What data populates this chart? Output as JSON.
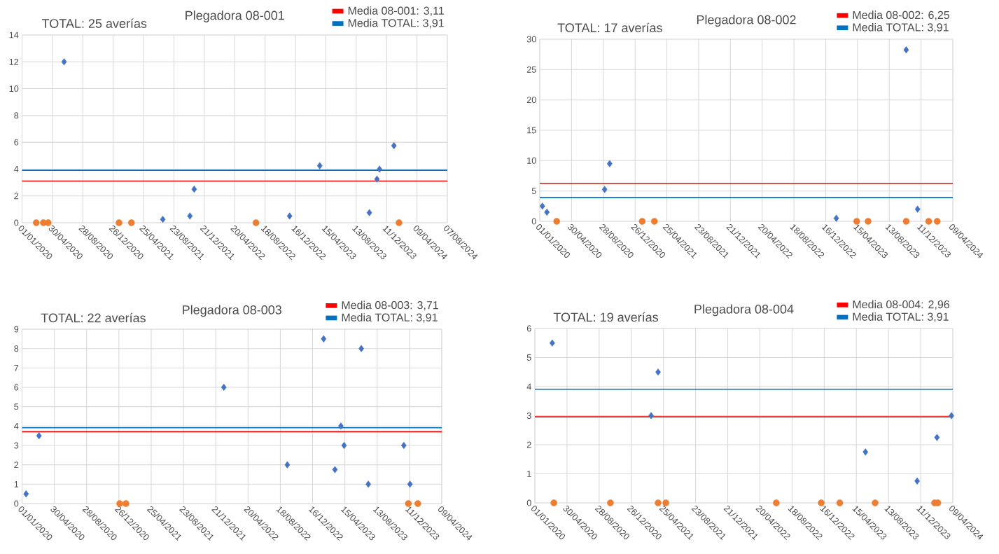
{
  "chart_data": [
    {
      "type": "scatter",
      "title": "Plegadora 08-001",
      "subtitle": "TOTAL: 25 averías",
      "grid": true,
      "legend": "top right",
      "xlim": [
        "2020-01-01",
        "2024-08-07"
      ],
      "xticks": [
        {
          "value": "2020-01-01",
          "label": "01/01/2020"
        },
        {
          "value": "2020-04-30",
          "label": "30/04/2020"
        },
        {
          "value": "2020-08-28",
          "label": "28/08/2020"
        },
        {
          "value": "2020-12-26",
          "label": "26/12/2020"
        },
        {
          "value": "2021-04-25",
          "label": "25/04/2021"
        },
        {
          "value": "2021-08-23",
          "label": "23/08/2021"
        },
        {
          "value": "2021-12-21",
          "label": "21/12/2021"
        },
        {
          "value": "2022-04-20",
          "label": "20/04/2022"
        },
        {
          "value": "2022-08-18",
          "label": "18/08/2022"
        },
        {
          "value": "2022-12-16",
          "label": "16/12/2022"
        },
        {
          "value": "2023-04-15",
          "label": "15/04/2023"
        },
        {
          "value": "2023-08-13",
          "label": "13/08/2023"
        },
        {
          "value": "2023-12-11",
          "label": "11/12/2023"
        },
        {
          "value": "2024-04-09",
          "label": "09/04/2024"
        },
        {
          "value": "2024-08-07",
          "label": "07/08/2024"
        }
      ],
      "ylim": [
        0,
        14
      ],
      "yticks": [
        0,
        2,
        4,
        6,
        8,
        10,
        12,
        14
      ],
      "series": [
        {
          "color": "#4472c4",
          "marker": "diamond",
          "x": [
            "2020-06-15",
            "2021-07-10",
            "2021-10-25",
            "2021-11-11",
            "2022-11-23",
            "2023-03-22",
            "2023-10-04",
            "2023-11-03",
            "2023-11-13",
            "2024-01-09"
          ],
          "values": [
            12,
            0.25,
            0.5,
            2.5,
            0.5,
            4.25,
            0.75,
            3.25,
            4,
            5.75
          ]
        },
        {
          "color": "#ed7d31",
          "marker": "circle",
          "x": [
            "2020-02-26",
            "2020-03-25",
            "2020-04-13",
            "2021-01-18",
            "2021-03-08",
            "2022-07-13",
            "2024-01-29"
          ],
          "values": [
            0,
            0,
            0,
            0,
            0,
            0,
            0
          ]
        }
      ],
      "ref_lines": [
        {
          "axis": "y",
          "value": 3.11,
          "label": "Media 08-001: 3,11",
          "color": "#ff0000"
        },
        {
          "axis": "y",
          "value": 3.91,
          "label": "Media TOTAL: 3,91",
          "color": "#0070c0"
        }
      ]
    },
    {
      "type": "scatter",
      "title": "Plegadora 08-002",
      "subtitle": "TOTAL: 17 averías",
      "grid": true,
      "legend": "top right",
      "xlim": [
        "2020-01-01",
        "2024-04-09"
      ],
      "xticks": [
        {
          "value": "2020-01-01",
          "label": "01/01/2020"
        },
        {
          "value": "2020-04-30",
          "label": "30/04/2020"
        },
        {
          "value": "2020-08-28",
          "label": "28/08/2020"
        },
        {
          "value": "2020-12-26",
          "label": "26/12/2020"
        },
        {
          "value": "2021-04-25",
          "label": "25/04/2021"
        },
        {
          "value": "2021-08-23",
          "label": "23/08/2021"
        },
        {
          "value": "2021-12-21",
          "label": "21/12/2021"
        },
        {
          "value": "2022-04-20",
          "label": "20/04/2022"
        },
        {
          "value": "2022-08-18",
          "label": "18/08/2022"
        },
        {
          "value": "2022-12-16",
          "label": "16/12/2022"
        },
        {
          "value": "2023-04-15",
          "label": "15/04/2023"
        },
        {
          "value": "2023-08-13",
          "label": "13/08/2023"
        },
        {
          "value": "2023-12-11",
          "label": "11/12/2023"
        },
        {
          "value": "2024-04-09",
          "label": "09/04/2024"
        }
      ],
      "ylim": [
        0,
        30
      ],
      "yticks": [
        0,
        5,
        10,
        15,
        20,
        25,
        30
      ],
      "series": [
        {
          "color": "#4472c4",
          "marker": "diamond",
          "x": [
            "2020-01-11",
            "2020-01-28",
            "2020-09-02",
            "2020-09-21",
            "2023-01-25",
            "2023-10-16",
            "2023-11-28"
          ],
          "values": [
            2.5,
            1.5,
            5.25,
            9.5,
            0.5,
            28.25,
            2
          ]
        },
        {
          "color": "#ed7d31",
          "marker": "circle",
          "x": [
            "2020-03-05",
            "2021-01-22",
            "2021-03-09",
            "2023-04-12",
            "2023-05-25",
            "2023-10-16",
            "2024-01-09",
            "2024-02-10"
          ],
          "values": [
            0,
            0,
            0,
            0,
            0,
            0,
            0,
            0
          ]
        }
      ],
      "ref_lines": [
        {
          "axis": "y",
          "value": 6.25,
          "label": "Media 08-002: 6,25",
          "color": "#ff0000"
        },
        {
          "axis": "y",
          "value": 3.91,
          "label": "Media TOTAL: 3,91",
          "color": "#0070c0"
        }
      ]
    },
    {
      "type": "scatter",
      "title": "Plegadora 08-003",
      "subtitle": "TOTAL: 22 averías",
      "grid": true,
      "legend": "top right",
      "xlim": [
        "2020-01-01",
        "2024-04-09"
      ],
      "xticks": [
        {
          "value": "2020-01-01",
          "label": "01/01/2020"
        },
        {
          "value": "2020-04-30",
          "label": "30/04/2020"
        },
        {
          "value": "2020-08-28",
          "label": "28/08/2020"
        },
        {
          "value": "2020-12-26",
          "label": "26/12/2020"
        },
        {
          "value": "2021-04-25",
          "label": "25/04/2021"
        },
        {
          "value": "2021-08-23",
          "label": "23/08/2021"
        },
        {
          "value": "2021-12-21",
          "label": "21/12/2021"
        },
        {
          "value": "2022-04-20",
          "label": "20/04/2022"
        },
        {
          "value": "2022-08-18",
          "label": "18/08/2022"
        },
        {
          "value": "2022-12-16",
          "label": "16/12/2022"
        },
        {
          "value": "2023-04-15",
          "label": "15/04/2023"
        },
        {
          "value": "2023-08-13",
          "label": "13/08/2023"
        },
        {
          "value": "2023-12-11",
          "label": "11/12/2023"
        },
        {
          "value": "2024-04-09",
          "label": "09/04/2024"
        }
      ],
      "ylim": [
        0,
        9
      ],
      "yticks": [
        0,
        1,
        2,
        3,
        4,
        5,
        6,
        7,
        8,
        9
      ],
      "series": [
        {
          "color": "#4472c4",
          "marker": "diamond",
          "x": [
            "2020-01-16",
            "2020-03-04",
            "2022-01-20",
            "2022-09-13",
            "2023-01-26",
            "2023-03-09",
            "2023-03-31",
            "2023-04-12",
            "2023-06-15",
            "2023-07-11",
            "2023-11-20",
            "2023-12-13"
          ],
          "values": [
            0.5,
            3.5,
            6,
            2,
            8.5,
            1.75,
            4,
            3,
            8,
            1,
            3,
            1
          ]
        },
        {
          "color": "#ed7d31",
          "marker": "circle",
          "x": [
            "2020-12-29",
            "2021-01-21",
            "2023-12-07",
            "2024-01-11"
          ],
          "values": [
            0,
            0,
            0,
            0
          ]
        }
      ],
      "ref_lines": [
        {
          "axis": "y",
          "value": 3.71,
          "label": "Media 08-003: 3,71",
          "color": "#ff0000"
        },
        {
          "axis": "y",
          "value": 3.91,
          "label": "Media TOTAL: 3,91",
          "color": "#0070c0"
        }
      ]
    },
    {
      "type": "scatter",
      "title": "Plegadora 08-004",
      "subtitle": "TOTAL: 19 averías",
      "grid": true,
      "legend": "top right",
      "xlim": [
        "2020-01-01",
        "2024-04-09"
      ],
      "xticks": [
        {
          "value": "2020-01-01",
          "label": "01/01/2020"
        },
        {
          "value": "2020-04-30",
          "label": "30/04/2020"
        },
        {
          "value": "2020-08-28",
          "label": "28/08/2020"
        },
        {
          "value": "2020-12-26",
          "label": "26/12/2020"
        },
        {
          "value": "2021-04-25",
          "label": "25/04/2021"
        },
        {
          "value": "2021-08-23",
          "label": "23/08/2021"
        },
        {
          "value": "2021-12-21",
          "label": "21/12/2021"
        },
        {
          "value": "2022-04-20",
          "label": "20/04/2022"
        },
        {
          "value": "2022-08-18",
          "label": "18/08/2022"
        },
        {
          "value": "2022-12-16",
          "label": "16/12/2022"
        },
        {
          "value": "2023-04-15",
          "label": "15/04/2023"
        },
        {
          "value": "2023-08-13",
          "label": "13/08/2023"
        },
        {
          "value": "2023-12-11",
          "label": "11/12/2023"
        },
        {
          "value": "2024-04-09",
          "label": "09/04/2024"
        }
      ],
      "ylim": [
        0,
        6
      ],
      "yticks": [
        0,
        1,
        2,
        3,
        4,
        5,
        6
      ],
      "series": [
        {
          "color": "#4472c4",
          "marker": "diamond",
          "x": [
            "2020-03-06",
            "2021-03-10",
            "2021-04-05",
            "2023-05-19",
            "2023-11-28",
            "2024-02-10",
            "2024-04-04"
          ],
          "values": [
            5.5,
            3,
            4.5,
            1.75,
            0.75,
            2.25,
            3
          ]
        },
        {
          "color": "#ed7d31",
          "marker": "circle",
          "x": [
            "2020-03-12",
            "2020-10-09",
            "2021-04-05",
            "2021-05-04",
            "2022-06-20",
            "2022-12-05",
            "2023-02-12",
            "2023-06-24",
            "2024-02-01",
            "2024-02-13"
          ],
          "values": [
            0,
            0,
            0,
            0,
            0,
            0,
            0,
            0,
            0,
            0
          ]
        }
      ],
      "ref_lines": [
        {
          "axis": "y",
          "value": 2.96,
          "label": "Media 08-004: 2,96",
          "color": "#ff0000"
        },
        {
          "axis": "y",
          "value": 3.91,
          "label": "Media TOTAL: 3,91",
          "color": "#0070c0"
        }
      ]
    }
  ]
}
